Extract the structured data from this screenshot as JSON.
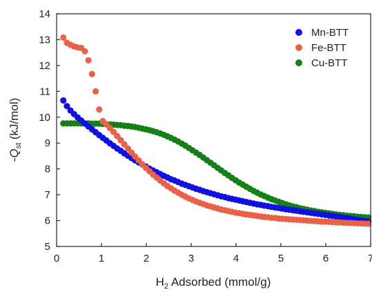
{
  "chart_data": {
    "type": "scatter",
    "xlabel_parts": {
      "pre": "H",
      "sub": "2",
      "post": " Adsorbed (mmol/g)"
    },
    "ylabel_parts": {
      "pre": "-",
      "italic": "Q",
      "sub": "st",
      "post": " (kJ/mol)"
    },
    "xlim": [
      0,
      7
    ],
    "ylim": [
      5,
      14
    ],
    "xticks": [
      0,
      1,
      2,
      3,
      4,
      5,
      6,
      7
    ],
    "yticks": [
      5,
      6,
      7,
      8,
      9,
      10,
      11,
      12,
      13,
      14
    ],
    "grid": false,
    "legend_position": "top-right",
    "series": [
      {
        "name": "Mn-BTT",
        "color": "#1010e0",
        "x": [
          0.15,
          0.23,
          0.31,
          0.39,
          0.47,
          0.55,
          0.63,
          0.71,
          0.79,
          0.87,
          0.95,
          1.03,
          1.11,
          1.19,
          1.27,
          1.35,
          1.43,
          1.51,
          1.59,
          1.67,
          1.75,
          1.83,
          1.91,
          1.99,
          2.07,
          2.15,
          2.23,
          2.31,
          2.39,
          2.47,
          2.55,
          2.63,
          2.71,
          2.79,
          2.87,
          2.95,
          3.03,
          3.11,
          3.19,
          3.27,
          3.35,
          3.43,
          3.51,
          3.59,
          3.67,
          3.75,
          3.83,
          3.91,
          3.99,
          4.07,
          4.15,
          4.23,
          4.31,
          4.39,
          4.47,
          4.55,
          4.63,
          4.71,
          4.79,
          4.87,
          4.95,
          5.03,
          5.11,
          5.19,
          5.27,
          5.35,
          5.43,
          5.51,
          5.59,
          5.67,
          5.75,
          5.83,
          5.91,
          5.99,
          6.07,
          6.15,
          6.23,
          6.31,
          6.39,
          6.47,
          6.55,
          6.63,
          6.71,
          6.79,
          6.87,
          6.95
        ],
        "y": [
          10.65,
          10.43,
          10.26,
          10.12,
          9.99,
          9.87,
          9.75,
          9.64,
          9.53,
          9.42,
          9.31,
          9.2,
          9.1,
          8.99,
          8.89,
          8.79,
          8.7,
          8.6,
          8.51,
          8.42,
          8.33,
          8.25,
          8.17,
          8.09,
          8.01,
          7.94,
          7.87,
          7.8,
          7.73,
          7.67,
          7.6,
          7.55,
          7.49,
          7.43,
          7.38,
          7.33,
          7.28,
          7.23,
          7.19,
          7.14,
          7.1,
          7.06,
          7.02,
          6.98,
          6.94,
          6.91,
          6.87,
          6.84,
          6.81,
          6.78,
          6.75,
          6.72,
          6.69,
          6.66,
          6.63,
          6.61,
          6.58,
          6.56,
          6.53,
          6.51,
          6.49,
          6.46,
          6.44,
          6.42,
          6.4,
          6.38,
          6.36,
          6.34,
          6.32,
          6.3,
          6.28,
          6.26,
          6.24,
          6.22,
          6.2,
          6.18,
          6.16,
          6.14,
          6.12,
          6.1,
          6.08,
          6.05,
          6.03,
          6.01,
          5.99,
          5.97
        ]
      },
      {
        "name": "Fe-BTT",
        "color": "#e8624a",
        "x": [
          0.15,
          0.23,
          0.31,
          0.39,
          0.47,
          0.55,
          0.63,
          0.71,
          0.79,
          0.87,
          0.95,
          1.03,
          1.11,
          1.19,
          1.27,
          1.35,
          1.43,
          1.51,
          1.59,
          1.67,
          1.75,
          1.83,
          1.91,
          1.99,
          2.07,
          2.15,
          2.23,
          2.31,
          2.39,
          2.47,
          2.55,
          2.63,
          2.71,
          2.79,
          2.87,
          2.95,
          3.03,
          3.11,
          3.19,
          3.27,
          3.35,
          3.43,
          3.51,
          3.59,
          3.67,
          3.75,
          3.83,
          3.91,
          3.99,
          4.07,
          4.15,
          4.23,
          4.31,
          4.39,
          4.47,
          4.55,
          4.63,
          4.71,
          4.79,
          4.87,
          4.95,
          5.03,
          5.11,
          5.19,
          5.27,
          5.35,
          5.43,
          5.51,
          5.59,
          5.67,
          5.75,
          5.83,
          5.91,
          5.99,
          6.07,
          6.15,
          6.23,
          6.31,
          6.39,
          6.47,
          6.55,
          6.63,
          6.71,
          6.79,
          6.87,
          6.95
        ],
        "y": [
          13.08,
          12.88,
          12.8,
          12.74,
          12.7,
          12.68,
          12.55,
          12.2,
          11.67,
          11.0,
          10.3,
          9.85,
          9.72,
          9.58,
          9.43,
          9.27,
          9.11,
          8.95,
          8.79,
          8.63,
          8.48,
          8.33,
          8.18,
          8.04,
          7.91,
          7.78,
          7.66,
          7.55,
          7.44,
          7.34,
          7.25,
          7.16,
          7.08,
          7.0,
          6.93,
          6.86,
          6.8,
          6.74,
          6.69,
          6.64,
          6.59,
          6.55,
          6.51,
          6.47,
          6.43,
          6.4,
          6.37,
          6.34,
          6.31,
          6.29,
          6.26,
          6.24,
          6.22,
          6.2,
          6.18,
          6.16,
          6.14,
          6.13,
          6.11,
          6.1,
          6.08,
          6.07,
          6.06,
          6.05,
          6.04,
          6.03,
          6.02,
          6.01,
          6.0,
          5.99,
          5.98,
          5.97,
          5.96,
          5.96,
          5.95,
          5.94,
          5.93,
          5.93,
          5.92,
          5.91,
          5.91,
          5.9,
          5.89,
          5.89,
          5.88,
          5.88
        ]
      },
      {
        "name": "Cu-BTT",
        "color": "#168018",
        "x": [
          0.15,
          0.23,
          0.31,
          0.39,
          0.47,
          0.55,
          0.63,
          0.71,
          0.79,
          0.87,
          0.95,
          1.03,
          1.11,
          1.19,
          1.27,
          1.35,
          1.43,
          1.51,
          1.59,
          1.67,
          1.75,
          1.83,
          1.91,
          1.99,
          2.07,
          2.15,
          2.23,
          2.31,
          2.39,
          2.47,
          2.55,
          2.63,
          2.71,
          2.79,
          2.87,
          2.95,
          3.03,
          3.11,
          3.19,
          3.27,
          3.35,
          3.43,
          3.51,
          3.59,
          3.67,
          3.75,
          3.83,
          3.91,
          3.99,
          4.07,
          4.15,
          4.23,
          4.31,
          4.39,
          4.47,
          4.55,
          4.63,
          4.71,
          4.79,
          4.87,
          4.95,
          5.03,
          5.11,
          5.19,
          5.27,
          5.35,
          5.43,
          5.51,
          5.59,
          5.67,
          5.75,
          5.83,
          5.91,
          5.99,
          6.07,
          6.15,
          6.23,
          6.31,
          6.39,
          6.47,
          6.55,
          6.63,
          6.71,
          6.79,
          6.87,
          6.95
        ],
        "y": [
          9.76,
          9.76,
          9.76,
          9.76,
          9.76,
          9.76,
          9.76,
          9.76,
          9.75,
          9.75,
          9.75,
          9.74,
          9.73,
          9.72,
          9.71,
          9.7,
          9.69,
          9.67,
          9.66,
          9.64,
          9.62,
          9.59,
          9.56,
          9.53,
          9.5,
          9.46,
          9.42,
          9.37,
          9.32,
          9.26,
          9.2,
          9.13,
          9.06,
          8.98,
          8.9,
          8.81,
          8.72,
          8.63,
          8.54,
          8.44,
          8.34,
          8.24,
          8.14,
          8.04,
          7.94,
          7.84,
          7.75,
          7.65,
          7.56,
          7.47,
          7.39,
          7.31,
          7.23,
          7.15,
          7.08,
          7.01,
          6.95,
          6.89,
          6.83,
          6.78,
          6.73,
          6.68,
          6.63,
          6.59,
          6.55,
          6.52,
          6.48,
          6.45,
          6.42,
          6.39,
          6.37,
          6.34,
          6.32,
          6.3,
          6.28,
          6.26,
          6.24,
          6.22,
          6.21,
          6.19,
          6.18,
          6.17,
          6.15,
          6.14,
          6.13,
          6.12
        ]
      }
    ]
  }
}
